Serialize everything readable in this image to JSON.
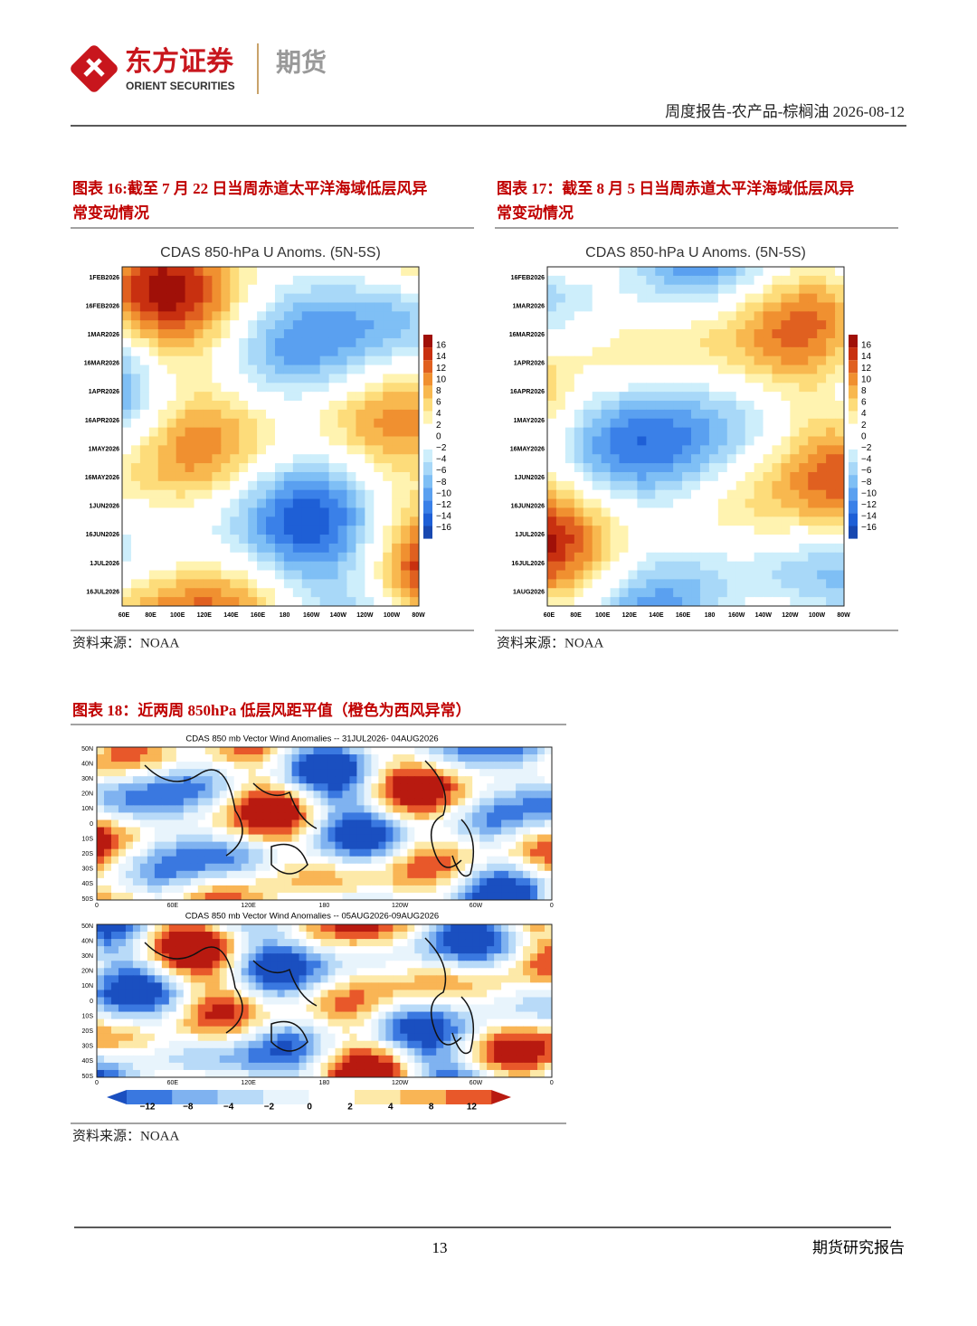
{
  "header": {
    "brand_cn": "东方证券",
    "brand_en": "ORIENT SECURITIES",
    "division": "期货",
    "report_line": "周度报告-农产品-棕榈油 2026-08-12"
  },
  "figures": [
    {
      "caption_lines": [
        "图表 16:截至 7 月 22 日当周赤道太平洋海域低层风异",
        "常变动情况"
      ],
      "plot_title": "CDAS 850-hPa U Anoms. (5N-5S)",
      "y_labels": [
        "1FEB2026",
        "16FEB2026",
        "1MAR2026",
        "16MAR2026",
        "1APR2026",
        "16APR2026",
        "1MAY2026",
        "16MAY2026",
        "1JUN2026",
        "16JUN2026",
        "1JUL2026",
        "16JUL2026"
      ],
      "x_labels": [
        "60E",
        "80E",
        "100E",
        "120E",
        "140E",
        "160E",
        "180",
        "160W",
        "140W",
        "120W",
        "100W",
        "80W"
      ],
      "colorbar": [
        "16",
        "14",
        "12",
        "10",
        "8",
        "6",
        "4",
        "2",
        "0",
        "−2",
        "−4",
        "−6",
        "−8",
        "−10",
        "−12",
        "−14",
        "−16"
      ],
      "source": "资料来源：NOAA"
    },
    {
      "caption_lines": [
        "图表 17：截至 8 月 5 日当周赤道太平洋海域低层风异",
        "常变动情况"
      ],
      "plot_title": "CDAS 850-hPa U Anoms. (5N-5S)",
      "y_labels": [
        "16FEB2026",
        "1MAR2026",
        "16MAR2026",
        "1APR2026",
        "16APR2026",
        "1MAY2026",
        "16MAY2026",
        "1JUN2026",
        "16JUN2026",
        "1JUL2026",
        "16JUL2026",
        "1AUG2026"
      ],
      "x_labels": [
        "60E",
        "80E",
        "100E",
        "120E",
        "140E",
        "160E",
        "180",
        "160W",
        "140W",
        "120W",
        "100W",
        "80W"
      ],
      "colorbar": [
        "16",
        "14",
        "12",
        "10",
        "8",
        "6",
        "4",
        "2",
        "0",
        "−2",
        "−4",
        "−6",
        "−8",
        "−10",
        "−12",
        "−14",
        "−16"
      ],
      "source": "资料来源：NOAA"
    },
    {
      "caption_lines": [
        "图表 18：近两周 850hPa 低层风距平值（橙色为西风异常）"
      ],
      "panels": [
        {
          "title": "CDAS 850 mb Vector Wind Anomalies -- 31JUL2026- 04AUG2026"
        },
        {
          "title": "CDAS 850 mb Vector Wind Anomalies -- 05AUG2026-09AUG2026"
        }
      ],
      "lat_labels": [
        "50N",
        "40N",
        "30N",
        "20N",
        "10N",
        "0",
        "10S",
        "20S",
        "30S",
        "40S",
        "50S"
      ],
      "lon_labels": [
        "0",
        "60E",
        "120E",
        "180",
        "120W",
        "60W",
        "0"
      ],
      "colorbar": [
        "−12",
        "−8",
        "−4",
        "−2",
        "0",
        "2",
        "4",
        "8",
        "12"
      ],
      "source": "资料来源：NOAA"
    }
  ],
  "footer": {
    "page": "13",
    "label": "期货研究报告"
  }
}
